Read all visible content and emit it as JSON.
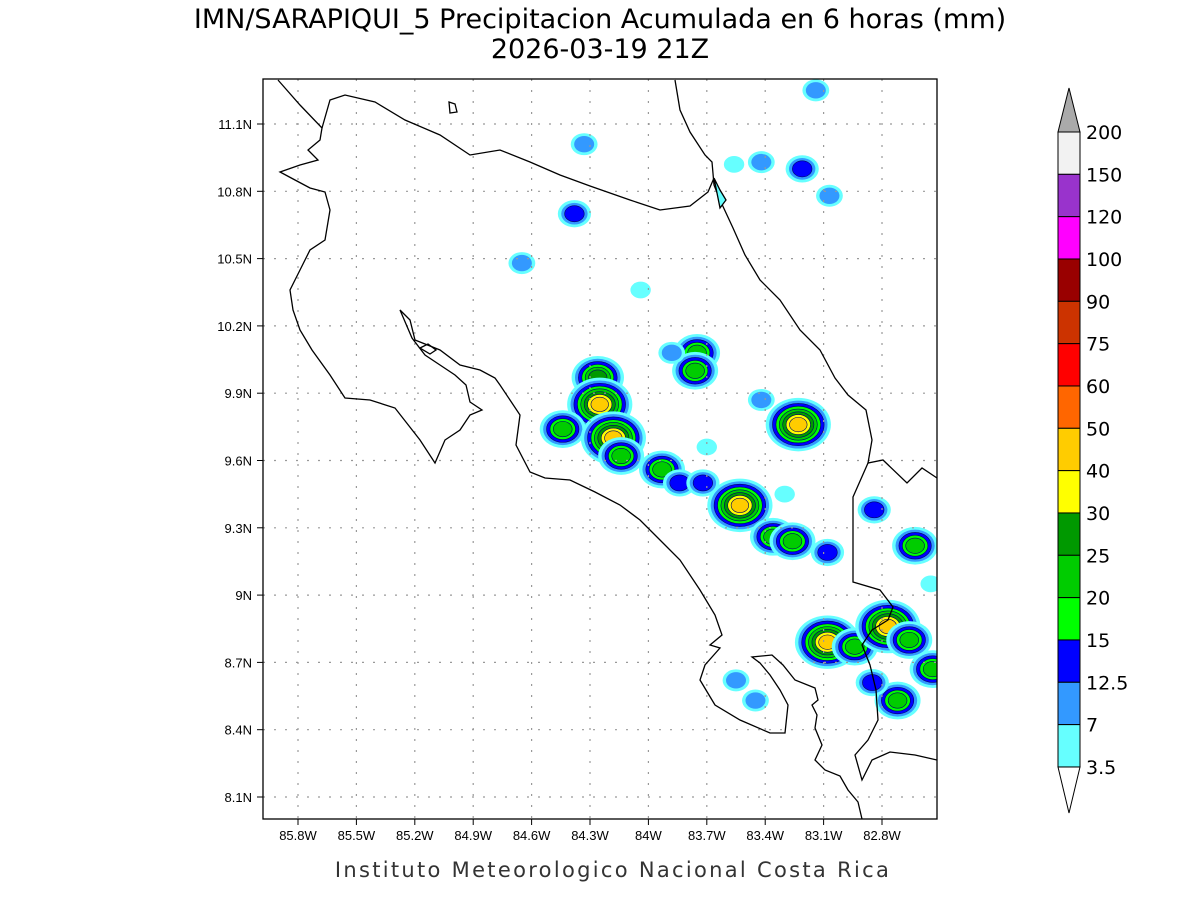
{
  "title": {
    "line1": "IMN/SARAPIQUI_5 Precipitacion Acumulada en 6 horas (mm)",
    "line2": "2026-03-19 21Z"
  },
  "credit": "Instituto Meteorologico Nacional Costa Rica",
  "chart_data": {
    "type": "heatmap",
    "variable": "6-hour accumulated precipitation (mm)",
    "lon_ticks": [
      "85.8W",
      "85.5W",
      "85.2W",
      "84.9W",
      "84.6W",
      "84.3W",
      "84W",
      "83.7W",
      "83.4W",
      "83.1W",
      "82.8W"
    ],
    "lat_ticks": [
      "11.1N",
      "10.8N",
      "10.5N",
      "10.2N",
      "9.9N",
      "9.6N",
      "9.3N",
      "9N",
      "8.7N",
      "8.4N",
      "8.1N"
    ],
    "lon_values": [
      -85.8,
      -85.5,
      -85.2,
      -84.9,
      -84.6,
      -84.3,
      -84.0,
      -83.7,
      -83.4,
      -83.1,
      -82.8
    ],
    "lat_values": [
      11.1,
      10.8,
      10.5,
      10.2,
      9.9,
      9.6,
      9.3,
      9.0,
      8.7,
      8.4,
      8.1
    ],
    "grid": true,
    "colorbar": {
      "labels": [
        "200",
        "150",
        "120",
        "100",
        "90",
        "75",
        "60",
        "50",
        "40",
        "30",
        "25",
        "20",
        "15",
        "12.5",
        "7",
        "3.5"
      ],
      "colors": [
        "#f2f2f2",
        "#9933cc",
        "#ff00ff",
        "#990000",
        "#cc3300",
        "#ff0000",
        "#ff6600",
        "#ffcc00",
        "#ffff00",
        "#009900",
        "#00cc00",
        "#00ff00",
        "#0000ff",
        "#3399ff",
        "#66ffff"
      ],
      "over_color": "#aaaaaa",
      "under_color": "#ffffff"
    },
    "precip_cells": [
      {
        "lon": -84.26,
        "lat": 9.97,
        "max_mm": 25
      },
      {
        "lon": -84.25,
        "lat": 9.85,
        "max_mm": 40
      },
      {
        "lon": -84.44,
        "lat": 9.74,
        "max_mm": 20
      },
      {
        "lon": -84.18,
        "lat": 9.7,
        "max_mm": 40
      },
      {
        "lon": -84.14,
        "lat": 9.62,
        "max_mm": 20
      },
      {
        "lon": -83.93,
        "lat": 9.56,
        "max_mm": 20
      },
      {
        "lon": -83.84,
        "lat": 9.5,
        "max_mm": 12.5
      },
      {
        "lon": -83.72,
        "lat": 9.5,
        "max_mm": 12.5
      },
      {
        "lon": -83.53,
        "lat": 9.4,
        "max_mm": 40
      },
      {
        "lon": -83.36,
        "lat": 9.26,
        "max_mm": 20
      },
      {
        "lon": -83.26,
        "lat": 9.24,
        "max_mm": 20
      },
      {
        "lon": -83.08,
        "lat": 9.19,
        "max_mm": 12.5
      },
      {
        "lon": -83.23,
        "lat": 9.76,
        "max_mm": 40
      },
      {
        "lon": -83.75,
        "lat": 10.08,
        "max_mm": 20
      },
      {
        "lon": -83.76,
        "lat": 10.0,
        "max_mm": 20
      },
      {
        "lon": -83.88,
        "lat": 10.08,
        "max_mm": 7
      },
      {
        "lon": -84.38,
        "lat": 10.7,
        "max_mm": 12.5
      },
      {
        "lon": -84.33,
        "lat": 11.01,
        "max_mm": 7
      },
      {
        "lon": -83.21,
        "lat": 10.9,
        "max_mm": 12.5
      },
      {
        "lon": -83.42,
        "lat": 10.93,
        "max_mm": 7
      },
      {
        "lon": -83.14,
        "lat": 11.25,
        "max_mm": 7
      },
      {
        "lon": -83.07,
        "lat": 10.78,
        "max_mm": 7
      },
      {
        "lon": -83.56,
        "lat": 10.92,
        "max_mm": 3.5
      },
      {
        "lon": -83.42,
        "lat": 9.87,
        "max_mm": 7
      },
      {
        "lon": -82.63,
        "lat": 9.22,
        "max_mm": 20
      },
      {
        "lon": -82.84,
        "lat": 9.38,
        "max_mm": 12.5
      },
      {
        "lon": -83.08,
        "lat": 8.79,
        "max_mm": 40
      },
      {
        "lon": -82.94,
        "lat": 8.77,
        "max_mm": 20
      },
      {
        "lon": -82.77,
        "lat": 8.86,
        "max_mm": 40
      },
      {
        "lon": -82.66,
        "lat": 8.8,
        "max_mm": 20
      },
      {
        "lon": -82.72,
        "lat": 8.53,
        "max_mm": 20
      },
      {
        "lon": -82.85,
        "lat": 8.61,
        "max_mm": 12.5
      },
      {
        "lon": -82.54,
        "lat": 8.67,
        "max_mm": 20
      },
      {
        "lon": -83.55,
        "lat": 8.62,
        "max_mm": 7
      },
      {
        "lon": -83.45,
        "lat": 8.53,
        "max_mm": 7
      },
      {
        "lon": -84.65,
        "lat": 10.48,
        "max_mm": 7
      },
      {
        "lon": -84.04,
        "lat": 10.36,
        "max_mm": 3.5
      },
      {
        "lon": -83.7,
        "lat": 9.66,
        "max_mm": 3.5
      },
      {
        "lon": -83.3,
        "lat": 9.45,
        "max_mm": 3.5
      },
      {
        "lon": -82.55,
        "lat": 9.05,
        "max_mm": 3.5
      }
    ]
  }
}
